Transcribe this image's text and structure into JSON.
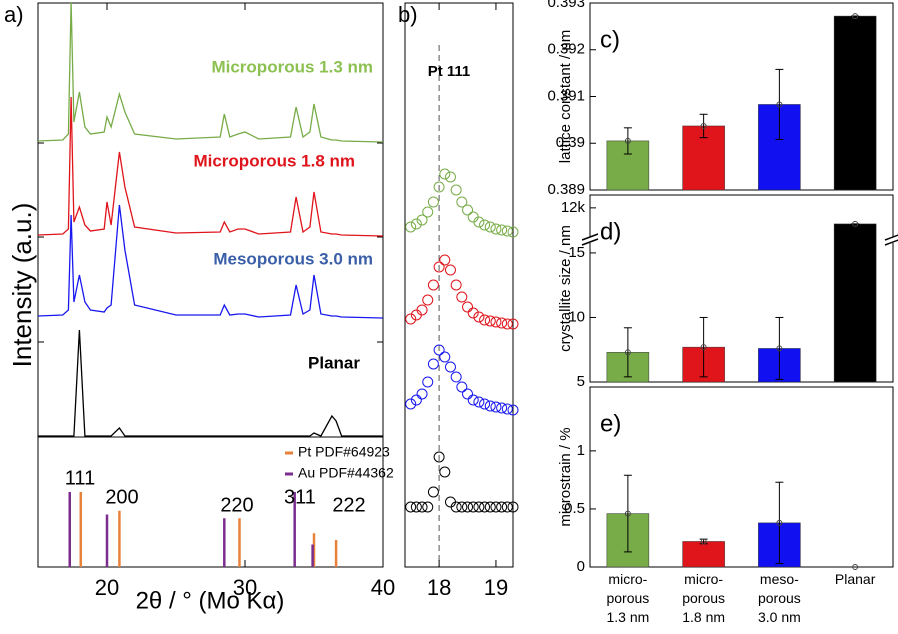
{
  "chart_data": [
    {
      "type": "line",
      "label": "a)",
      "y_label": "Intensity (a.u.)",
      "x_label": "2θ / ° (Mo Kα)",
      "xlim": [
        15,
        40
      ],
      "xticks": [
        20,
        30,
        40
      ],
      "x": [
        15,
        16.8,
        17.2,
        17.4,
        17.6,
        18.0,
        18.4,
        18.8,
        19.8,
        20.0,
        20.3,
        20.9,
        21.3,
        22.0,
        25,
        28.2,
        28.5,
        28.9,
        29.5,
        30.0,
        31,
        33.3,
        33.7,
        34.2,
        34.7,
        35.0,
        35.5,
        36.3,
        36.6,
        37,
        40
      ],
      "series": [
        {
          "name": "Microporous 1.3 nm",
          "color": "#77ac48",
          "label_color": "#8cc152",
          "values": [
            1,
            2,
            8,
            140,
            20,
            50,
            15,
            8,
            10,
            25,
            15,
            48,
            30,
            8,
            3,
            5,
            28,
            5,
            8,
            10,
            3,
            5,
            35,
            5,
            10,
            38,
            5,
            2,
            2,
            1,
            0
          ]
        },
        {
          "name": "Microporous 1.8 nm",
          "color": "#e0141b",
          "label_color": "#e0141b",
          "values": [
            2,
            3,
            8,
            140,
            15,
            30,
            12,
            6,
            8,
            35,
            12,
            85,
            50,
            10,
            4,
            5,
            15,
            5,
            8,
            8,
            3,
            5,
            40,
            5,
            10,
            45,
            5,
            3,
            3,
            2,
            1
          ]
        },
        {
          "name": "Mesoporous 3.0 nm",
          "color": "#1818f0",
          "label_color": "#3a5fa8",
          "values": [
            4,
            5,
            10,
            105,
            18,
            45,
            18,
            10,
            8,
            12,
            15,
            115,
            70,
            15,
            5,
            5,
            15,
            5,
            6,
            6,
            3,
            5,
            35,
            6,
            10,
            45,
            6,
            4,
            4,
            3,
            2
          ]
        },
        {
          "name": "Planar",
          "color": "#000000",
          "label_color": "#000000",
          "values": [
            0,
            0,
            0,
            0,
            0,
            106,
            0,
            0,
            0,
            0,
            0,
            8,
            0,
            0,
            0,
            0,
            0,
            0,
            0,
            0,
            0,
            0,
            0,
            0,
            0,
            3,
            0,
            20,
            15,
            0,
            0
          ]
        }
      ],
      "reference_series": [
        {
          "name": "Pt PDF#64923",
          "color": "#e8823a",
          "x": [
            18.1,
            20.9,
            29.6,
            35.0,
            36.6
          ],
          "values": [
            100,
            75,
            65,
            45,
            36
          ]
        },
        {
          "name": "Au PDF#44362",
          "color": "#7b2d8e",
          "x": [
            17.3,
            20.0,
            28.5,
            33.6,
            34.9
          ],
          "values": [
            100,
            70,
            65,
            100,
            30
          ]
        }
      ],
      "annotations": [
        "111",
        "200",
        "220",
        "311",
        "222"
      ]
    },
    {
      "type": "scatter",
      "label": "b)",
      "annotation": "Pt 111",
      "marker_line": 18.0,
      "xlim": [
        17.4,
        19.3
      ],
      "xticks": [
        18,
        19
      ],
      "x": [
        17.5,
        17.6,
        17.7,
        17.8,
        17.9,
        18.0,
        18.1,
        18.2,
        18.3,
        18.4,
        18.5,
        18.6,
        18.7,
        18.8,
        18.9,
        19.0,
        19.1,
        19.2,
        19.3
      ],
      "series": [
        {
          "color": "#77ac48",
          "values": [
            5,
            8,
            12,
            20,
            30,
            45,
            58,
            55,
            42,
            30,
            22,
            15,
            10,
            7,
            5,
            3,
            2,
            1,
            0
          ]
        },
        {
          "color": "#e0141b",
          "values": [
            6,
            10,
            15,
            25,
            40,
            58,
            65,
            55,
            40,
            28,
            18,
            12,
            8,
            5,
            4,
            3,
            2,
            1,
            1
          ]
        },
        {
          "color": "#1818f0",
          "values": [
            8,
            12,
            18,
            30,
            48,
            62,
            55,
            45,
            35,
            25,
            18,
            12,
            10,
            8,
            6,
            5,
            4,
            3,
            2
          ]
        },
        {
          "color": "#000000",
          "values": [
            0,
            0,
            0,
            0,
            15,
            50,
            35,
            5,
            0,
            0,
            0,
            0,
            0,
            0,
            0,
            0,
            0,
            0,
            0
          ]
        }
      ]
    },
    {
      "type": "bar",
      "label": "c)",
      "y_label": "lattice constant / nm",
      "ylim": [
        0.389,
        0.393
      ],
      "yticks": [
        0.389,
        0.39,
        0.391,
        0.392,
        0.393
      ],
      "values": [
        0.39005,
        0.39037,
        0.39083,
        0.39272
      ],
      "errors": [
        0.00028,
        0.00025,
        0.00075,
        0
      ],
      "colors": [
        "#77ac48",
        "#e0141b",
        "#1010f0",
        "#000000"
      ]
    },
    {
      "type": "bar",
      "label": "d)",
      "y_label": "crystallite size / nm",
      "ylim": [
        5,
        12400
      ],
      "ybreak": [
        16,
        11000
      ],
      "yticks": [
        5,
        10,
        15,
        {
          "value": 12000,
          "label": "12k"
        }
      ],
      "values": [
        7.3,
        7.7,
        7.6,
        11500
      ],
      "errors": [
        1.9,
        2.3,
        2.4,
        0
      ],
      "colors": [
        "#77ac48",
        "#e0141b",
        "#1010f0",
        "#000000"
      ]
    },
    {
      "type": "bar",
      "label": "e)",
      "y_label": "microstrain / %",
      "ylim": [
        0,
        1.55
      ],
      "yticks": [
        0,
        0.5,
        1
      ],
      "categories": [
        "micro-\nporous\n1.3 nm",
        "micro-\nporous\n1.8 nm",
        "meso-\nporous\n3.0 nm",
        "Planar"
      ],
      "values": [
        0.46,
        0.22,
        0.38,
        0
      ],
      "errors": [
        0.33,
        0.02,
        0.35,
        0
      ],
      "colors": [
        "#77ac48",
        "#e0141b",
        "#1010f0",
        "#000000"
      ]
    }
  ]
}
